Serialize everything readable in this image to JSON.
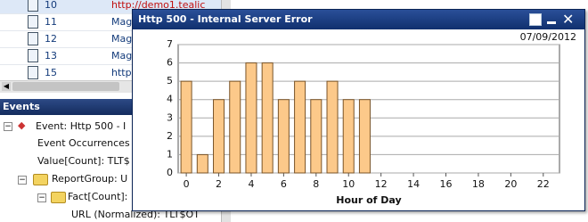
{
  "list": {
    "rows": [
      {
        "id": "10",
        "url": "http://demo1.tealic"
      },
      {
        "id": "11",
        "url": "Mag"
      },
      {
        "id": "12",
        "url": "Mag"
      },
      {
        "id": "13",
        "url": "Mag"
      },
      {
        "id": "15",
        "url": "http"
      }
    ]
  },
  "events_panel": {
    "title": "Events",
    "tree": [
      "Event: Http 500 - I",
      "Event Occurrences",
      "Value[Count]: TLT$",
      "ReportGroup: U",
      "Fact[Count]:",
      "URL (Normalized): TLT$OT"
    ]
  },
  "window": {
    "title": "Http 500 - Internal Server Error",
    "date": "07/09/2012"
  },
  "chart_data": {
    "type": "bar",
    "x_label": "Hour of Day",
    "x": [
      0,
      1,
      2,
      3,
      4,
      5,
      6,
      7,
      8,
      9,
      10,
      11
    ],
    "values": [
      5,
      1,
      4,
      5,
      6,
      6,
      4,
      5,
      4,
      5,
      4,
      4
    ],
    "color": "#fcc98a",
    "edge_color": "#7a5428",
    "xlim": [
      -0.5,
      23
    ],
    "xticks": [
      0,
      2,
      4,
      6,
      8,
      10,
      12,
      14,
      16,
      18,
      20,
      22
    ],
    "ylim": [
      0,
      7
    ],
    "yticks": [
      0,
      1,
      2,
      3,
      4,
      5,
      6,
      7
    ],
    "grid": true
  }
}
